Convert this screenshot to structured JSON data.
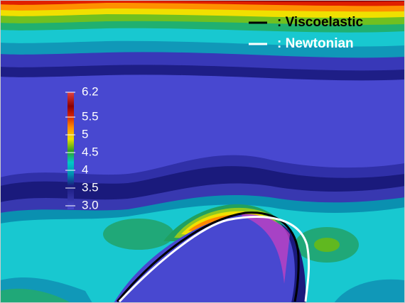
{
  "chart_data": {
    "type": "contour",
    "colorbar": {
      "lim": [
        3,
        6.2
      ],
      "ticks": [
        {
          "value": 3,
          "label": "3.0"
        },
        3.5,
        4,
        4.5,
        5,
        5.5,
        6.2
      ]
    },
    "series": [
      {
        "name": ": Viscoelastic",
        "color": "#000000"
      },
      {
        "name": ": Newtonian",
        "color": "#ffffff"
      }
    ]
  }
}
